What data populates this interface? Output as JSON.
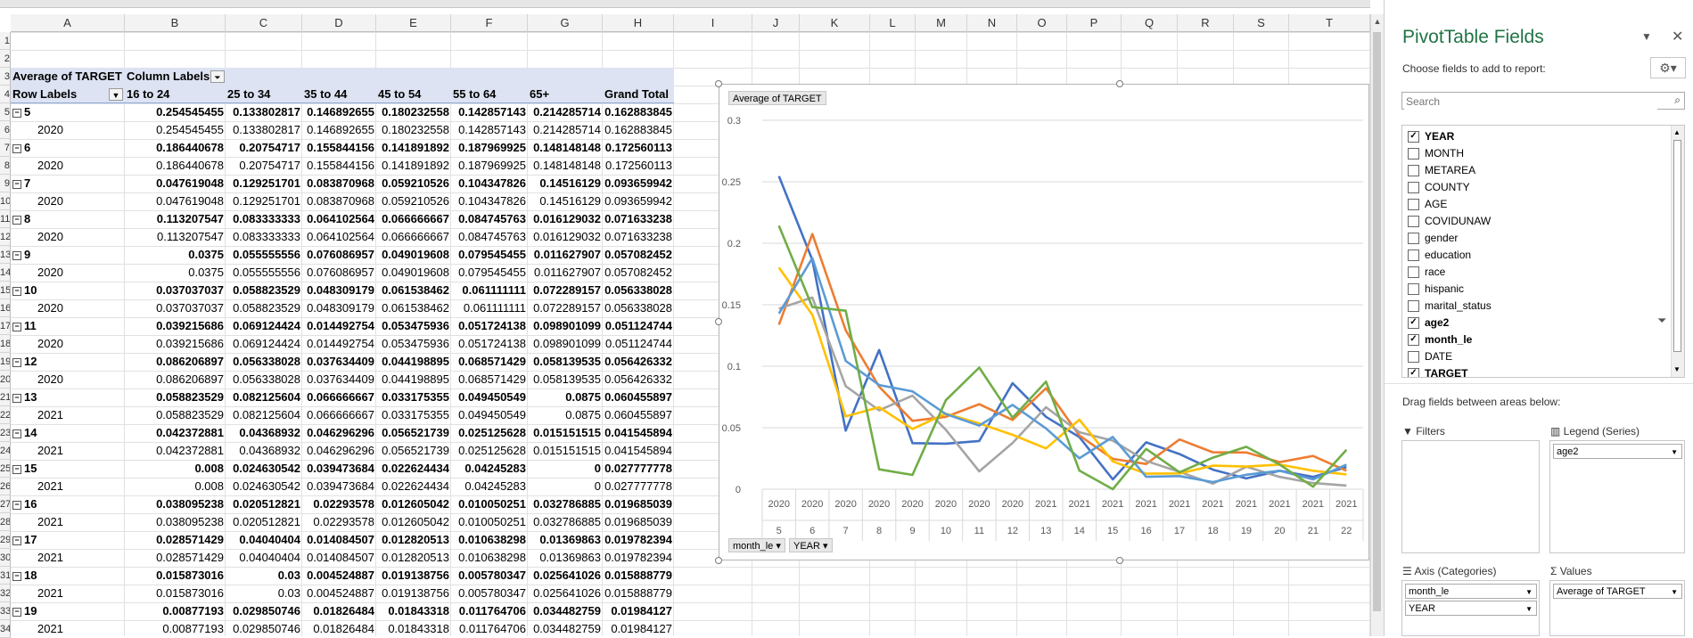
{
  "columns": [
    "A",
    "B",
    "C",
    "D",
    "E",
    "F",
    "G",
    "H",
    "I",
    "J",
    "K",
    "L",
    "M",
    "N",
    "O",
    "P",
    "Q",
    "R",
    "S",
    "T"
  ],
  "row_numbers": [
    "1",
    "2",
    "3",
    "4",
    "5",
    "6",
    "7",
    "8",
    "9",
    "10",
    "11",
    "12",
    "13",
    "14",
    "15",
    "16",
    "17",
    "18",
    "19",
    "20",
    "21",
    "22",
    "23",
    "24",
    "25",
    "26",
    "27",
    "28",
    "29",
    "30",
    "31",
    "32",
    "33",
    "34"
  ],
  "pivot": {
    "value_label": "Average of TARGET",
    "column_labels": "Column Labels",
    "row_labels": "Row Labels",
    "headers": [
      "16 to 24",
      "25 to 34",
      "35 to 44",
      "45 to 54",
      "55 to 64",
      "65+",
      "Grand Total"
    ],
    "rows": [
      {
        "label": "5",
        "bold": true,
        "vals": [
          "0.254545455",
          "0.133802817",
          "0.146892655",
          "0.180232558",
          "0.142857143",
          "0.214285714",
          "0.162883845"
        ]
      },
      {
        "label": "2020",
        "bold": false,
        "vals": [
          "0.254545455",
          "0.133802817",
          "0.146892655",
          "0.180232558",
          "0.142857143",
          "0.214285714",
          "0.162883845"
        ]
      },
      {
        "label": "6",
        "bold": true,
        "vals": [
          "0.186440678",
          "0.20754717",
          "0.155844156",
          "0.141891892",
          "0.187969925",
          "0.148148148",
          "0.172560113"
        ]
      },
      {
        "label": "2020",
        "bold": false,
        "vals": [
          "0.186440678",
          "0.20754717",
          "0.155844156",
          "0.141891892",
          "0.187969925",
          "0.148148148",
          "0.172560113"
        ]
      },
      {
        "label": "7",
        "bold": true,
        "vals": [
          "0.047619048",
          "0.129251701",
          "0.083870968",
          "0.059210526",
          "0.104347826",
          "0.14516129",
          "0.093659942"
        ]
      },
      {
        "label": "2020",
        "bold": false,
        "vals": [
          "0.047619048",
          "0.129251701",
          "0.083870968",
          "0.059210526",
          "0.104347826",
          "0.14516129",
          "0.093659942"
        ]
      },
      {
        "label": "8",
        "bold": true,
        "vals": [
          "0.113207547",
          "0.083333333",
          "0.064102564",
          "0.066666667",
          "0.084745763",
          "0.016129032",
          "0.071633238"
        ]
      },
      {
        "label": "2020",
        "bold": false,
        "vals": [
          "0.113207547",
          "0.083333333",
          "0.064102564",
          "0.066666667",
          "0.084745763",
          "0.016129032",
          "0.071633238"
        ]
      },
      {
        "label": "9",
        "bold": true,
        "vals": [
          "0.0375",
          "0.055555556",
          "0.076086957",
          "0.049019608",
          "0.079545455",
          "0.011627907",
          "0.057082452"
        ]
      },
      {
        "label": "2020",
        "bold": false,
        "vals": [
          "0.0375",
          "0.055555556",
          "0.076086957",
          "0.049019608",
          "0.079545455",
          "0.011627907",
          "0.057082452"
        ]
      },
      {
        "label": "10",
        "bold": true,
        "vals": [
          "0.037037037",
          "0.058823529",
          "0.048309179",
          "0.061538462",
          "0.061111111",
          "0.072289157",
          "0.056338028"
        ]
      },
      {
        "label": "2020",
        "bold": false,
        "vals": [
          "0.037037037",
          "0.058823529",
          "0.048309179",
          "0.061538462",
          "0.061111111",
          "0.072289157",
          "0.056338028"
        ]
      },
      {
        "label": "11",
        "bold": true,
        "vals": [
          "0.039215686",
          "0.069124424",
          "0.014492754",
          "0.053475936",
          "0.051724138",
          "0.098901099",
          "0.051124744"
        ]
      },
      {
        "label": "2020",
        "bold": false,
        "vals": [
          "0.039215686",
          "0.069124424",
          "0.014492754",
          "0.053475936",
          "0.051724138",
          "0.098901099",
          "0.051124744"
        ]
      },
      {
        "label": "12",
        "bold": true,
        "vals": [
          "0.086206897",
          "0.056338028",
          "0.037634409",
          "0.044198895",
          "0.068571429",
          "0.058139535",
          "0.056426332"
        ]
      },
      {
        "label": "2020",
        "bold": false,
        "vals": [
          "0.086206897",
          "0.056338028",
          "0.037634409",
          "0.044198895",
          "0.068571429",
          "0.058139535",
          "0.056426332"
        ]
      },
      {
        "label": "13",
        "bold": true,
        "vals": [
          "0.058823529",
          "0.082125604",
          "0.066666667",
          "0.033175355",
          "0.049450549",
          "0.0875",
          "0.060455897"
        ]
      },
      {
        "label": "2021",
        "bold": false,
        "vals": [
          "0.058823529",
          "0.082125604",
          "0.066666667",
          "0.033175355",
          "0.049450549",
          "0.0875",
          "0.060455897"
        ]
      },
      {
        "label": "14",
        "bold": true,
        "vals": [
          "0.042372881",
          "0.04368932",
          "0.046296296",
          "0.056521739",
          "0.025125628",
          "0.015151515",
          "0.041545894"
        ]
      },
      {
        "label": "2021",
        "bold": false,
        "vals": [
          "0.042372881",
          "0.04368932",
          "0.046296296",
          "0.056521739",
          "0.025125628",
          "0.015151515",
          "0.041545894"
        ]
      },
      {
        "label": "15",
        "bold": true,
        "vals": [
          "0.008",
          "0.024630542",
          "0.039473684",
          "0.022624434",
          "0.04245283",
          "0",
          "0.027777778"
        ]
      },
      {
        "label": "2021",
        "bold": false,
        "vals": [
          "0.008",
          "0.024630542",
          "0.039473684",
          "0.022624434",
          "0.04245283",
          "0",
          "0.027777778"
        ]
      },
      {
        "label": "16",
        "bold": true,
        "vals": [
          "0.038095238",
          "0.020512821",
          "0.02293578",
          "0.012605042",
          "0.010050251",
          "0.032786885",
          "0.019685039"
        ]
      },
      {
        "label": "2021",
        "bold": false,
        "vals": [
          "0.038095238",
          "0.020512821",
          "0.02293578",
          "0.012605042",
          "0.010050251",
          "0.032786885",
          "0.019685039"
        ]
      },
      {
        "label": "17",
        "bold": true,
        "vals": [
          "0.028571429",
          "0.04040404",
          "0.014084507",
          "0.012820513",
          "0.010638298",
          "0.01369863",
          "0.019782394"
        ]
      },
      {
        "label": "2021",
        "bold": false,
        "vals": [
          "0.028571429",
          "0.04040404",
          "0.014084507",
          "0.012820513",
          "0.010638298",
          "0.01369863",
          "0.019782394"
        ]
      },
      {
        "label": "18",
        "bold": true,
        "vals": [
          "0.015873016",
          "0.03",
          "0.004524887",
          "0.019138756",
          "0.005780347",
          "0.025641026",
          "0.015888779"
        ]
      },
      {
        "label": "2021",
        "bold": false,
        "vals": [
          "0.015873016",
          "0.03",
          "0.004524887",
          "0.019138756",
          "0.005780347",
          "0.025641026",
          "0.015888779"
        ]
      },
      {
        "label": "19",
        "bold": true,
        "vals": [
          "0.00877193",
          "0.029850746",
          "0.01826484",
          "0.01843318",
          "0.011764706",
          "0.034482759",
          "0.01984127"
        ]
      },
      {
        "label": "2021",
        "bold": false,
        "vals": [
          "0.00877193",
          "0.029850746",
          "0.01826484",
          "0.01843318",
          "0.011764706",
          "0.034482759",
          "0.01984127"
        ]
      }
    ]
  },
  "chart_data": {
    "type": "line",
    "title": "Average of TARGET",
    "ylim": [
      0,
      0.3
    ],
    "yticks": [
      "0",
      "0.05",
      "0.1",
      "0.15",
      "0.2",
      "0.25",
      "0.3"
    ],
    "x_years": [
      "2020",
      "2020",
      "2020",
      "2020",
      "2020",
      "2020",
      "2020",
      "2020",
      "2021",
      "2021",
      "2021",
      "2021",
      "2021",
      "2021",
      "2021",
      "2021",
      "2021",
      "2021"
    ],
    "x_months": [
      "5",
      "6",
      "7",
      "8",
      "9",
      "10",
      "11",
      "12",
      "13",
      "14",
      "15",
      "16",
      "17",
      "18",
      "19",
      "20",
      "21",
      "22"
    ],
    "grid": true,
    "axis_buttons": [
      "month_le",
      "YEAR"
    ],
    "series": [
      {
        "color": "#4472c4",
        "values": [
          0.254545455,
          0.186440678,
          0.047619048,
          0.113207547,
          0.0375,
          0.037037037,
          0.039215686,
          0.086206897,
          0.058823529,
          0.042372881,
          0.008,
          0.038095238,
          0.028571429,
          0.015873016,
          0.00877193,
          0.015,
          0.01,
          0.018
        ]
      },
      {
        "color": "#ed7d31",
        "values": [
          0.133802817,
          0.20754717,
          0.129251701,
          0.083333333,
          0.055555556,
          0.058823529,
          0.069124424,
          0.056338028,
          0.082125604,
          0.04368932,
          0.024630542,
          0.020512821,
          0.04040404,
          0.03,
          0.029850746,
          0.022,
          0.027,
          0.015
        ]
      },
      {
        "color": "#a5a5a5",
        "values": [
          0.146892655,
          0.155844156,
          0.083870968,
          0.064102564,
          0.076086957,
          0.048309179,
          0.014492754,
          0.037634409,
          0.066666667,
          0.046296296,
          0.039473684,
          0.02293578,
          0.014084507,
          0.004524887,
          0.01826484,
          0.01,
          0.005,
          0.003
        ]
      },
      {
        "color": "#ffc000",
        "values": [
          0.180232558,
          0.141891892,
          0.059210526,
          0.066666667,
          0.049019608,
          0.061538462,
          0.053475936,
          0.044198895,
          0.033175355,
          0.056521739,
          0.022624434,
          0.012605042,
          0.012820513,
          0.019138756,
          0.01843318,
          0.02,
          0.015,
          0.012
        ]
      },
      {
        "color": "#5b9bd5",
        "values": [
          0.142857143,
          0.187969925,
          0.104347826,
          0.084745763,
          0.079545455,
          0.061111111,
          0.051724138,
          0.068571429,
          0.049450549,
          0.025125628,
          0.04245283,
          0.010050251,
          0.010638298,
          0.005780347,
          0.011764706,
          0.015,
          0.008,
          0.02
        ]
      },
      {
        "color": "#70ad47",
        "values": [
          0.214285714,
          0.148148148,
          0.14516129,
          0.016129032,
          0.011627907,
          0.072289157,
          0.098901099,
          0.058139535,
          0.0875,
          0.015151515,
          0,
          0.032786885,
          0.01369863,
          0.025641026,
          0.034482759,
          0.02,
          0.002,
          0.032
        ]
      }
    ]
  },
  "pane": {
    "title": "PivotTable Fields",
    "subtitle": "Choose fields to add to report:",
    "search_placeholder": "Search",
    "fields": [
      {
        "name": "YEAR",
        "checked": true
      },
      {
        "name": "MONTH",
        "checked": false
      },
      {
        "name": "METAREA",
        "checked": false
      },
      {
        "name": "COUNTY",
        "checked": false
      },
      {
        "name": "AGE",
        "checked": false
      },
      {
        "name": "COVIDUNAW",
        "checked": false
      },
      {
        "name": "gender",
        "checked": false
      },
      {
        "name": "education",
        "checked": false
      },
      {
        "name": "race",
        "checked": false
      },
      {
        "name": "hispanic",
        "checked": false
      },
      {
        "name": "marital_status",
        "checked": false
      },
      {
        "name": "age2",
        "checked": true
      },
      {
        "name": "month_le",
        "checked": true
      },
      {
        "name": "DATE",
        "checked": false
      },
      {
        "name": "TARGET",
        "checked": true
      }
    ],
    "drag_label": "Drag fields between areas below:",
    "filters_label": "Filters",
    "legend_label": "Legend (Series)",
    "legend_items": [
      "age2"
    ],
    "axis_label": "Axis (Categories)",
    "axis_items": [
      "month_le",
      "YEAR"
    ],
    "values_label": "Values",
    "values_items": [
      "Average of TARGET"
    ]
  }
}
